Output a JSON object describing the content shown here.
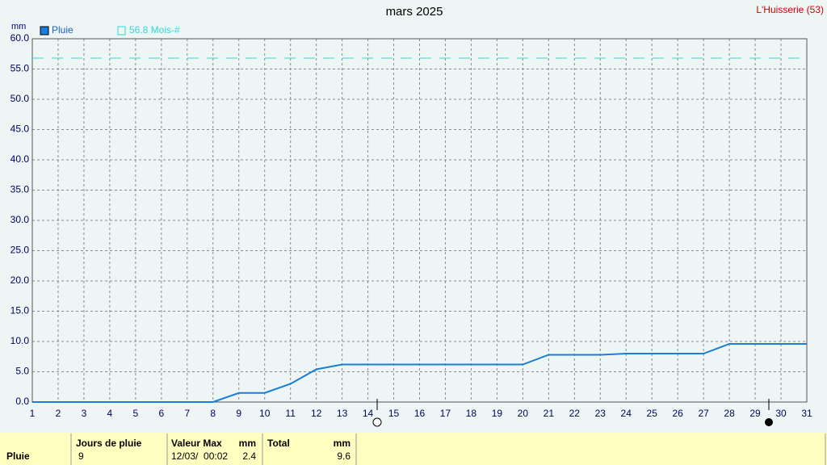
{
  "chart_data": {
    "type": "line",
    "title": "mars 2025",
    "station": "L'Huisserie (53)",
    "y_unit": "mm",
    "x": [
      1,
      2,
      3,
      4,
      5,
      6,
      7,
      8,
      9,
      10,
      11,
      12,
      13,
      14,
      15,
      16,
      17,
      18,
      19,
      20,
      21,
      22,
      23,
      24,
      25,
      26,
      27,
      28,
      29,
      30,
      31
    ],
    "series": [
      {
        "name": "Pluie",
        "color": "#1a7ed8",
        "values": [
          0,
          0,
          0,
          0,
          0,
          0,
          0,
          0,
          1.5,
          1.5,
          3.0,
          5.4,
          6.2,
          6.2,
          6.2,
          6.2,
          6.2,
          6.2,
          6.2,
          6.2,
          7.8,
          7.8,
          7.8,
          8.0,
          8.0,
          8.0,
          8.0,
          9.6,
          9.6,
          9.6,
          9.6
        ]
      }
    ],
    "reference": {
      "name": "56.8 Mois-#",
      "value": 56.8,
      "color": "#30d8d8"
    },
    "xlim": [
      1,
      31
    ],
    "xticks": [
      1,
      2,
      3,
      4,
      5,
      6,
      7,
      8,
      9,
      10,
      11,
      12,
      13,
      14,
      15,
      16,
      17,
      18,
      19,
      20,
      21,
      22,
      23,
      24,
      25,
      26,
      27,
      28,
      29,
      30,
      31
    ],
    "ylim": [
      0,
      60
    ],
    "yticks": [
      {
        "value": 0,
        "label": "0.0"
      },
      {
        "value": 5,
        "label": "5.0"
      },
      {
        "value": 10,
        "label": "10.0"
      },
      {
        "value": 15,
        "label": "15.0"
      },
      {
        "value": 20,
        "label": "20.0"
      },
      {
        "value": 25,
        "label": "25.0"
      },
      {
        "value": 30,
        "label": "30.0"
      },
      {
        "value": 35,
        "label": "35.0"
      },
      {
        "value": 40,
        "label": "40.0"
      },
      {
        "value": 45,
        "label": "45.0"
      },
      {
        "value": 50,
        "label": "50.0"
      },
      {
        "value": 55,
        "label": "55.0"
      },
      {
        "value": 60,
        "label": "60.0"
      }
    ],
    "grid": true
  },
  "table": {
    "row_label": "Pluie",
    "headers": [
      "Jours de pluie",
      "Valeur Max",
      "mm",
      "Total",
      "mm"
    ],
    "values": [
      "9",
      "12/03/  00:02",
      "2.4",
      "9.6"
    ]
  }
}
